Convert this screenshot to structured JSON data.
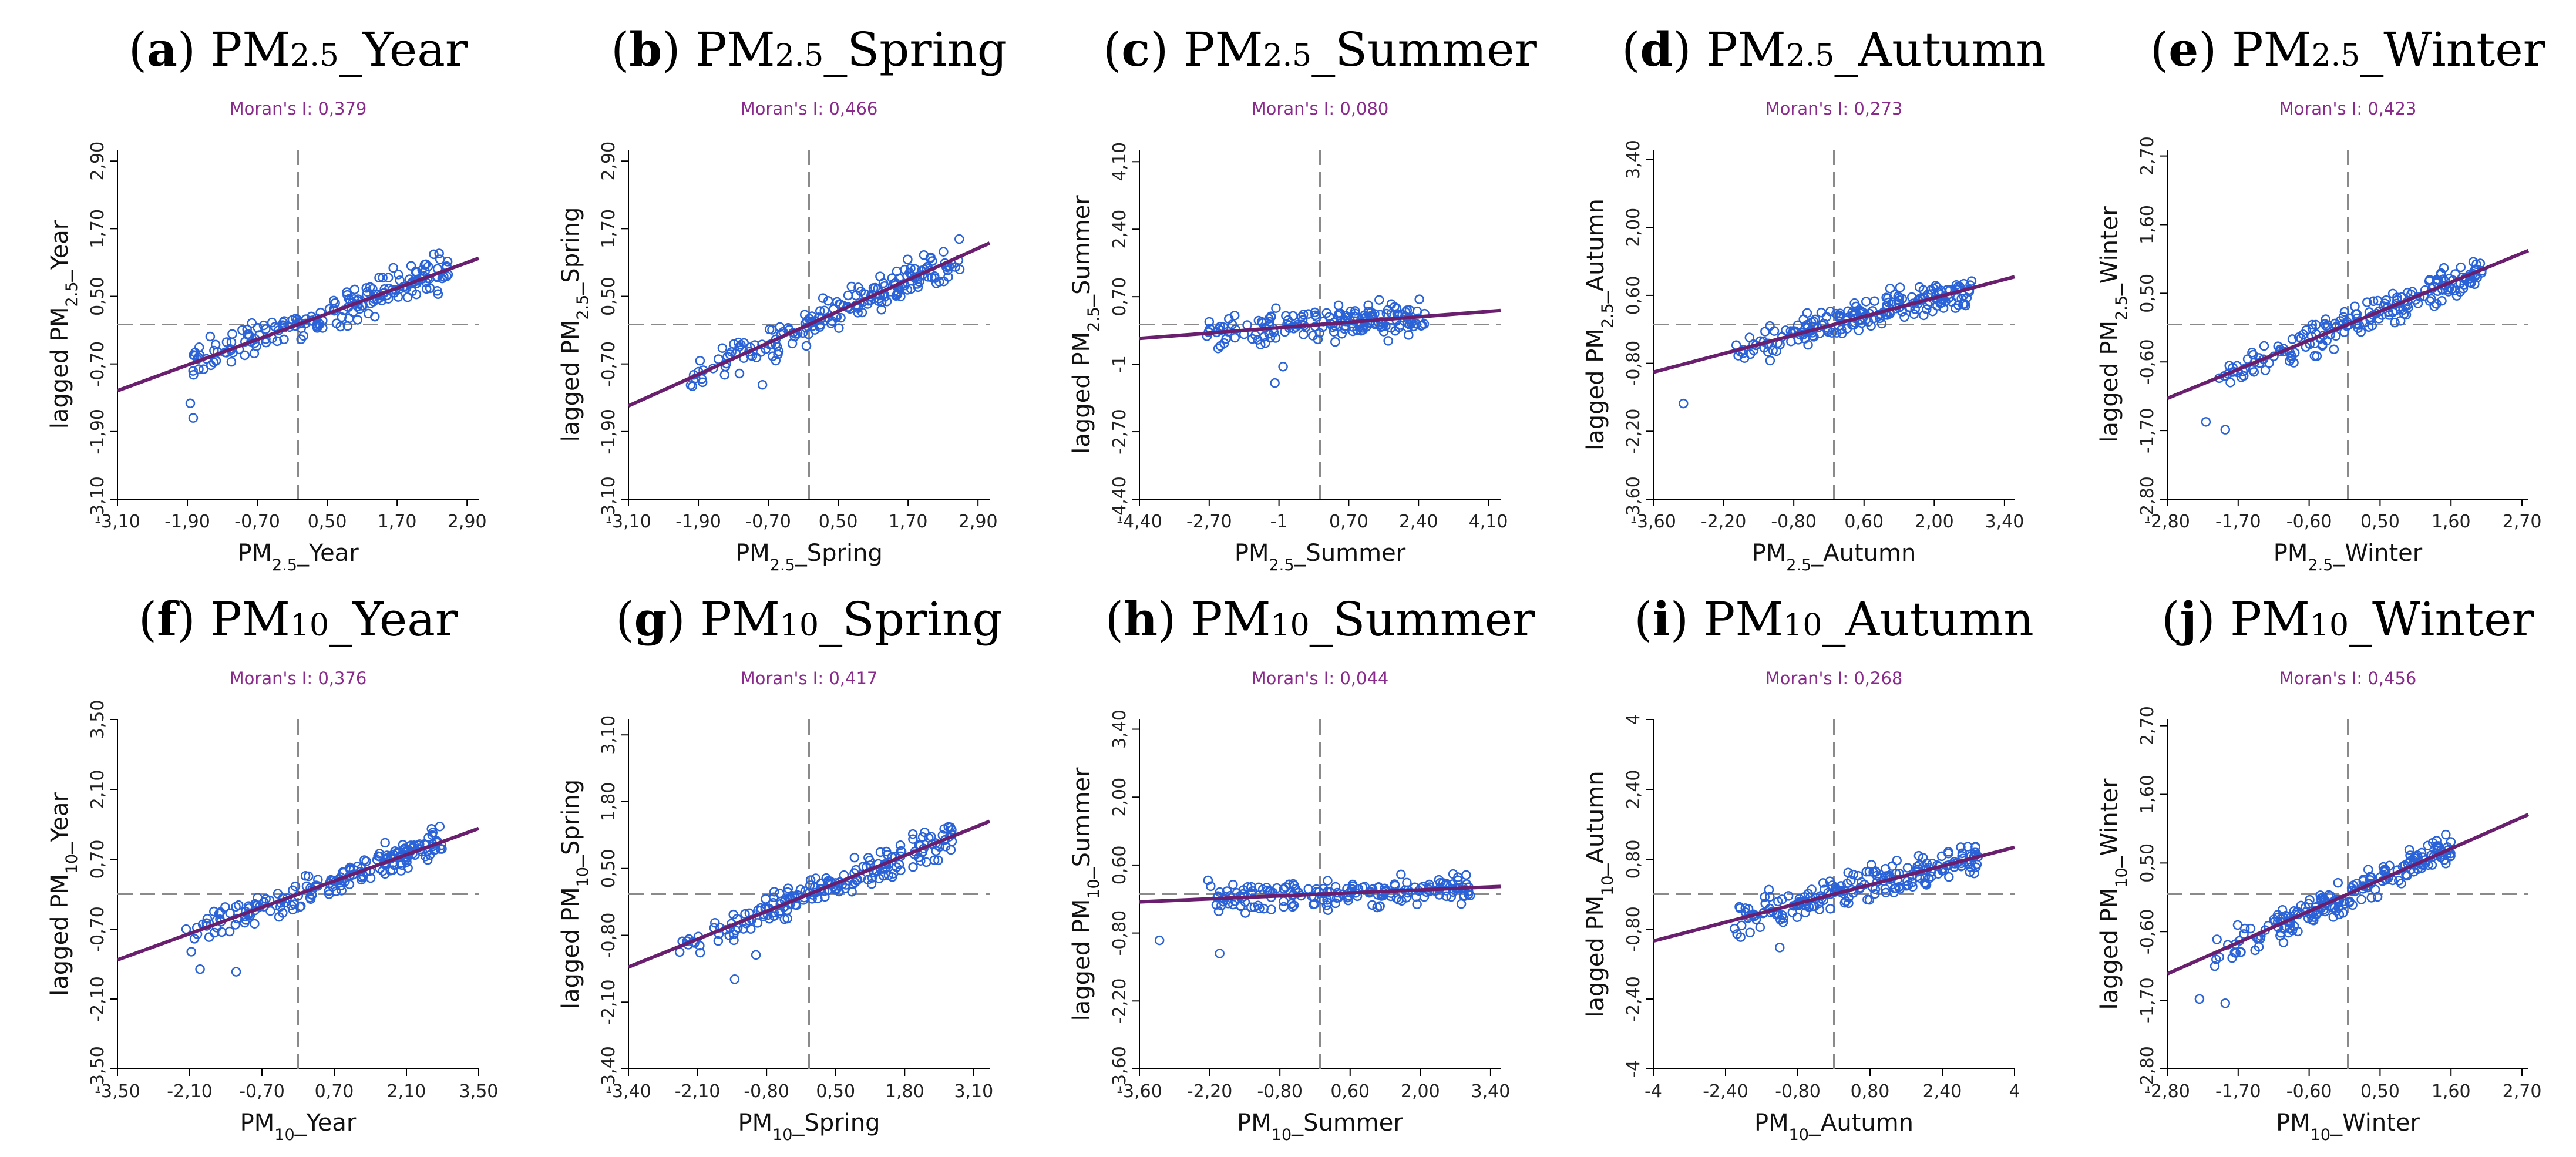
{
  "colors": {
    "points": "#2a63d8",
    "fit_line": "#6a1f6e",
    "moran_text": "#8a2a8c",
    "guide": "#8a8a8a"
  },
  "chart_data": [
    {
      "id": "a",
      "type": "scatter",
      "title_label": "a",
      "title_pollutant": "PM",
      "title_sub": "2.5",
      "title_season": "_Year",
      "moran": "Moran's I: 0,379",
      "slope": 0.379,
      "xlabel": {
        "pre": "PM",
        "sub": "2.5",
        "post": "_Year"
      },
      "ylabel": {
        "pre": "lagged PM",
        "sub": "2.5",
        "post": "_Year"
      },
      "ticks": [
        "-3,10",
        "-1,90",
        "-0,70",
        "0,50",
        "1,70",
        "2,90"
      ],
      "tick_values": [
        -3.1,
        -1.9,
        -0.7,
        0.5,
        1.7,
        2.9
      ],
      "xlim": [
        -3.1,
        3.1
      ],
      "ylim": [
        -3.1,
        3.1
      ],
      "x_range": [
        -1.95,
        2.7
      ],
      "x_outliers": [
        -1.85,
        -1.8
      ],
      "points_n": 190
    },
    {
      "id": "b",
      "type": "scatter",
      "title_label": "b",
      "title_pollutant": "PM",
      "title_sub": "2.5",
      "title_season": "_Spring",
      "moran": "Moran's I: 0,466",
      "slope": 0.466,
      "xlabel": {
        "pre": "PM",
        "sub": "2.5",
        "post": "_Spring"
      },
      "ylabel": {
        "pre": "lagged PM",
        "sub": "2.5",
        "post": "_Spring"
      },
      "ticks": [
        "-3,10",
        "-1,90",
        "-0,70",
        "0,50",
        "1,70",
        "2,90"
      ],
      "tick_values": [
        -3.1,
        -1.9,
        -0.7,
        0.5,
        1.7,
        2.9
      ],
      "xlim": [
        -3.1,
        3.1
      ],
      "ylim": [
        -3.1,
        3.1
      ],
      "x_range": [
        -2.1,
        2.6
      ],
      "x_outliers": [
        -0.8
      ],
      "points_n": 190
    },
    {
      "id": "c",
      "type": "scatter",
      "title_label": "c",
      "title_pollutant": "PM",
      "title_sub": "2.5",
      "title_season": "_Summer",
      "moran": "Moran's I: 0,080",
      "slope": 0.08,
      "xlabel": {
        "pre": "PM",
        "sub": "2.5",
        "post": "_Summer"
      },
      "ylabel": {
        "pre": "lagged PM",
        "sub": "2.5",
        "post": "_Summer"
      },
      "ticks": [
        "-4,40",
        "-2,70",
        "-1",
        "0,70",
        "2,40",
        "4,10"
      ],
      "tick_values": [
        -4.4,
        -2.7,
        -1.0,
        0.7,
        2.4,
        4.1
      ],
      "xlim": [
        -4.4,
        4.4
      ],
      "ylim": [
        -4.4,
        4.4
      ],
      "x_range": [
        -2.8,
        2.6
      ],
      "x_outliers": [
        -0.9,
        -1.1
      ],
      "points_n": 170
    },
    {
      "id": "d",
      "type": "scatter",
      "title_label": "d",
      "title_pollutant": "PM",
      "title_sub": "2.5",
      "title_season": "_Autumn",
      "moran": "Moran's I: 0,273",
      "slope": 0.273,
      "xlabel": {
        "pre": "PM",
        "sub": "2.5",
        "post": "_Autumn"
      },
      "ylabel": {
        "pre": "lagged PM",
        "sub": "2.5",
        "post": "_Autumn"
      },
      "ticks": [
        "-3,60",
        "-2,20",
        "-0,80",
        "0,60",
        "2,00",
        "3,40"
      ],
      "tick_values": [
        -3.6,
        -2.2,
        -0.8,
        0.6,
        2.0,
        3.4
      ],
      "xlim": [
        -3.6,
        3.6
      ],
      "ylim": [
        -3.6,
        3.6
      ],
      "x_range": [
        -2.0,
        2.8
      ],
      "x_outliers": [
        -3.0
      ],
      "points_n": 190
    },
    {
      "id": "e",
      "type": "scatter",
      "title_label": "e",
      "title_pollutant": "PM",
      "title_sub": "2.5",
      "title_season": "_Winter",
      "moran": "Moran's I: 0,423",
      "slope": 0.423,
      "xlabel": {
        "pre": "PM",
        "sub": "2.5",
        "post": "_Winter"
      },
      "ylabel": {
        "pre": "lagged PM",
        "sub": "2.5",
        "post": "_Winter"
      },
      "ticks": [
        "-2,80",
        "-1,70",
        "-0,60",
        "0,50",
        "1,60",
        "2,70"
      ],
      "tick_values": [
        -2.8,
        -1.7,
        -0.6,
        0.5,
        1.6,
        2.7
      ],
      "xlim": [
        -2.8,
        2.8
      ],
      "ylim": [
        -2.8,
        2.8
      ],
      "x_range": [
        -2.0,
        2.1
      ],
      "x_outliers": [
        -2.2,
        -1.9
      ],
      "points_n": 190
    },
    {
      "id": "f",
      "type": "scatter",
      "title_label": "f",
      "title_pollutant": "PM",
      "title_sub": "10",
      "title_season": "_Year",
      "moran": "Moran's I: 0,376",
      "slope": 0.376,
      "xlabel": {
        "pre": "PM",
        "sub": "10",
        "post": "_Year"
      },
      "ylabel": {
        "pre": "lagged PM",
        "sub": "10",
        "post": "_Year"
      },
      "ticks": [
        "-3,50",
        "-2,10",
        "-0,70",
        "0,70",
        "2,10",
        "3,50"
      ],
      "tick_values": [
        -3.5,
        -2.1,
        -0.7,
        0.7,
        2.1,
        3.5
      ],
      "xlim": [
        -3.5,
        3.5
      ],
      "ylim": [
        -3.5,
        3.5
      ],
      "x_range": [
        -2.2,
        2.8
      ],
      "x_outliers": [
        -1.9,
        -1.2
      ],
      "points_n": 190
    },
    {
      "id": "g",
      "type": "scatter",
      "title_label": "g",
      "title_pollutant": "PM",
      "title_sub": "10",
      "title_season": "_Spring",
      "moran": "Moran's I: 0,417",
      "slope": 0.417,
      "xlabel": {
        "pre": "PM",
        "sub": "10",
        "post": "_Spring"
      },
      "ylabel": {
        "pre": "lagged PM",
        "sub": "10",
        "post": "_Spring"
      },
      "ticks": [
        "-3,40",
        "-2,10",
        "-0,80",
        "0,50",
        "1,80",
        "3,10"
      ],
      "tick_values": [
        -3.4,
        -2.1,
        -0.8,
        0.5,
        1.8,
        3.1
      ],
      "xlim": [
        -3.4,
        3.4
      ],
      "ylim": [
        -3.4,
        3.4
      ],
      "x_range": [
        -2.5,
        2.7
      ],
      "x_outliers": [
        -1.0,
        -1.4
      ],
      "points_n": 190
    },
    {
      "id": "h",
      "type": "scatter",
      "title_label": "h",
      "title_pollutant": "PM",
      "title_sub": "10",
      "title_season": "_Summer",
      "moran": "Moran's I: 0,044",
      "slope": 0.044,
      "xlabel": {
        "pre": "PM",
        "sub": "10",
        "post": "_Summer"
      },
      "ylabel": {
        "pre": "lagged PM",
        "sub": "10",
        "post": "_Summer"
      },
      "ticks": [
        "-3,60",
        "-2,20",
        "-0,80",
        "0,60",
        "2,00",
        "3,40"
      ],
      "tick_values": [
        -3.6,
        -2.2,
        -0.8,
        0.6,
        2.0,
        3.4
      ],
      "xlim": [
        -3.6,
        3.6
      ],
      "ylim": [
        -3.6,
        3.6
      ],
      "x_range": [
        -2.3,
        3.0
      ],
      "x_outliers": [
        -3.2,
        -2.0
      ],
      "points_n": 180
    },
    {
      "id": "i",
      "type": "scatter",
      "title_label": "i",
      "title_pollutant": "PM",
      "title_sub": "10",
      "title_season": "_Autumn",
      "moran": "Moran's I: 0,268",
      "slope": 0.268,
      "xlabel": {
        "pre": "PM",
        "sub": "10",
        "post": "_Autumn"
      },
      "ylabel": {
        "pre": "lagged PM",
        "sub": "10",
        "post": "_Autumn"
      },
      "ticks": [
        "-4",
        "-2,40",
        "-0,80",
        "0,80",
        "2,40",
        "4"
      ],
      "tick_values": [
        -4.0,
        -2.4,
        -0.8,
        0.8,
        2.4,
        4.0
      ],
      "xlim": [
        -4.0,
        4.0
      ],
      "ylim": [
        -4.0,
        4.0
      ],
      "x_range": [
        -2.4,
        3.2
      ],
      "x_outliers": [
        -1.2
      ],
      "points_n": 200
    },
    {
      "id": "j",
      "type": "scatter",
      "title_label": "j",
      "title_pollutant": "PM",
      "title_sub": "10",
      "title_season": "_Winter",
      "moran": "Moran's I: 0,456",
      "slope": 0.456,
      "xlabel": {
        "pre": "PM",
        "sub": "10",
        "post": "_Winter"
      },
      "ylabel": {
        "pre": "lagged PM",
        "sub": "10",
        "post": "_Winter"
      },
      "ticks": [
        "-2,80",
        "-1,70",
        "-0,60",
        "0,50",
        "1,60",
        "2,70"
      ],
      "tick_values": [
        -2.8,
        -1.7,
        -0.6,
        0.5,
        1.6,
        2.7
      ],
      "xlim": [
        -2.8,
        2.8
      ],
      "ylim": [
        -2.8,
        2.8
      ],
      "x_range": [
        -2.1,
        1.6
      ],
      "x_outliers": [
        -2.3,
        -1.9
      ],
      "points_n": 190
    }
  ]
}
